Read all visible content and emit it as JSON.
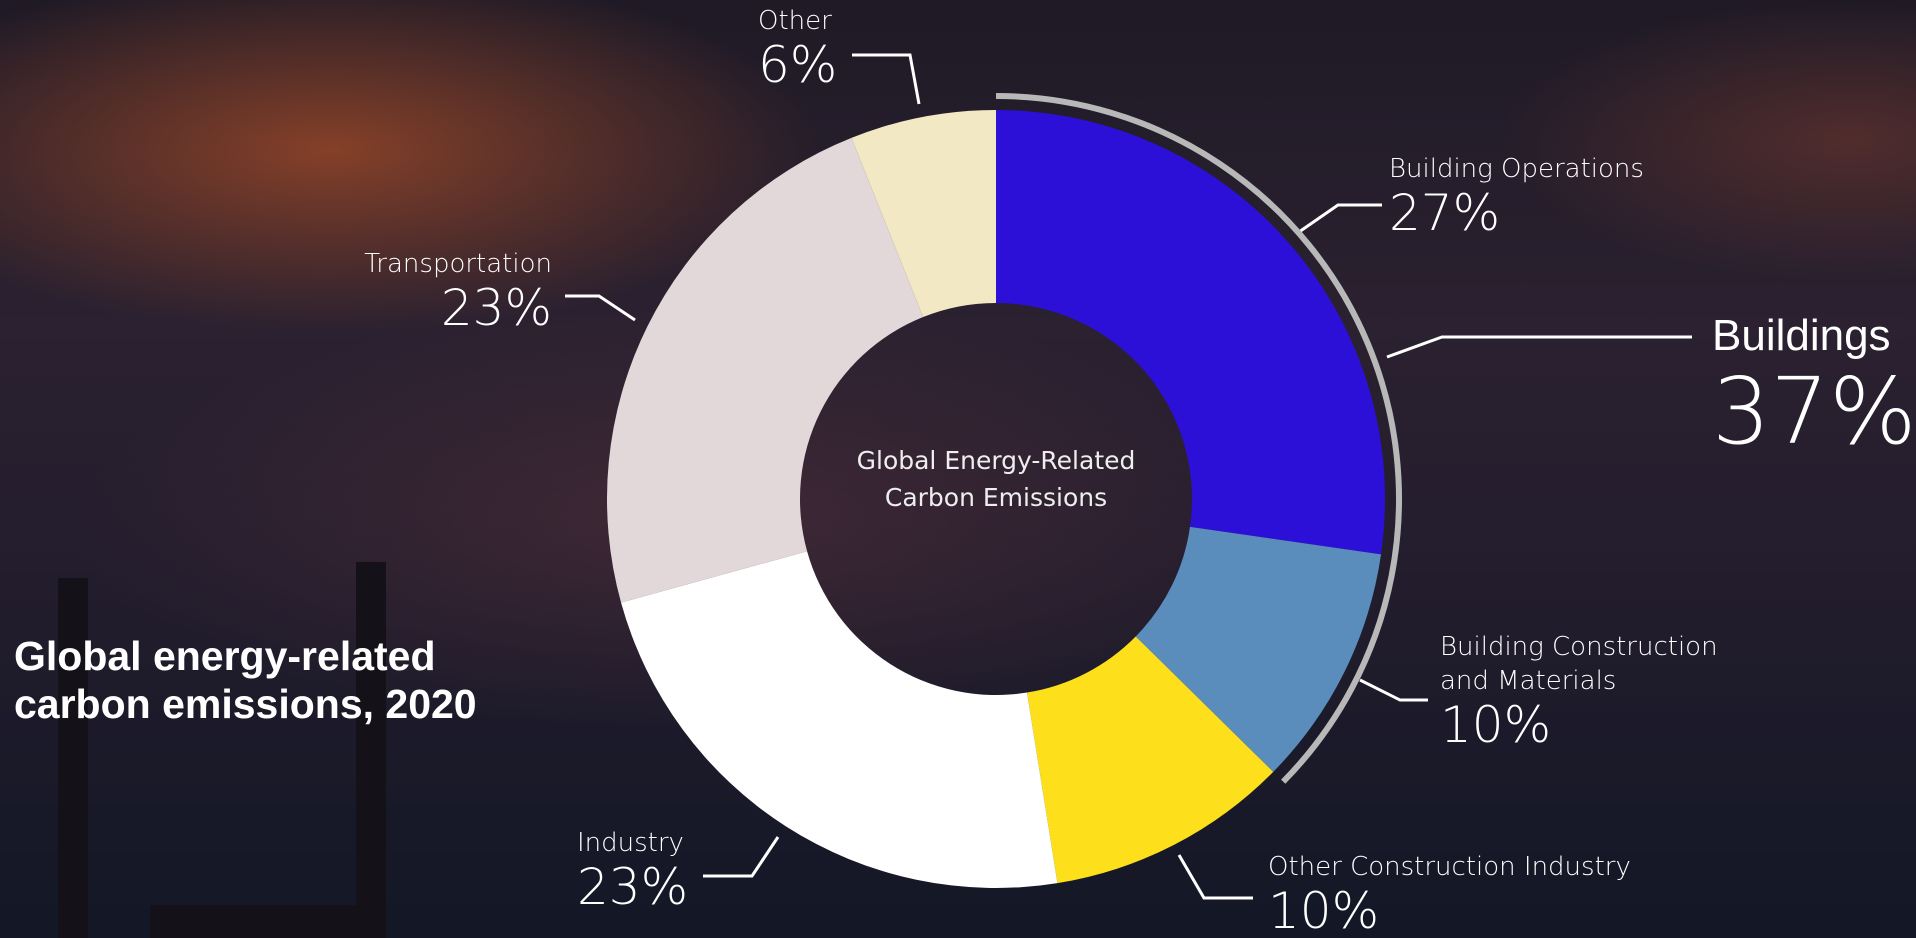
{
  "chart_data": {
    "type": "donut",
    "title": "Global energy-related carbon emissions, 2020",
    "center_label": "Global Energy-Related Carbon Emissions",
    "categories": [
      "Building Operations",
      "Building Construction and Materials",
      "Other Construction Industry",
      "Industry",
      "Transportation",
      "Other"
    ],
    "values": [
      27,
      10,
      10,
      23,
      23,
      6
    ],
    "value_labels": [
      "27%",
      "10%",
      "10%",
      "23%",
      "23%",
      "6%"
    ],
    "colors": [
      "#2c10d8",
      "#5a8cbc",
      "#fde01b",
      "#ffffff",
      "#e3d8d9",
      "#f3e8c4"
    ],
    "group": {
      "name": "Buildings",
      "value": 37,
      "value_label": "37%",
      "color": "#b8b8b8"
    }
  }
}
